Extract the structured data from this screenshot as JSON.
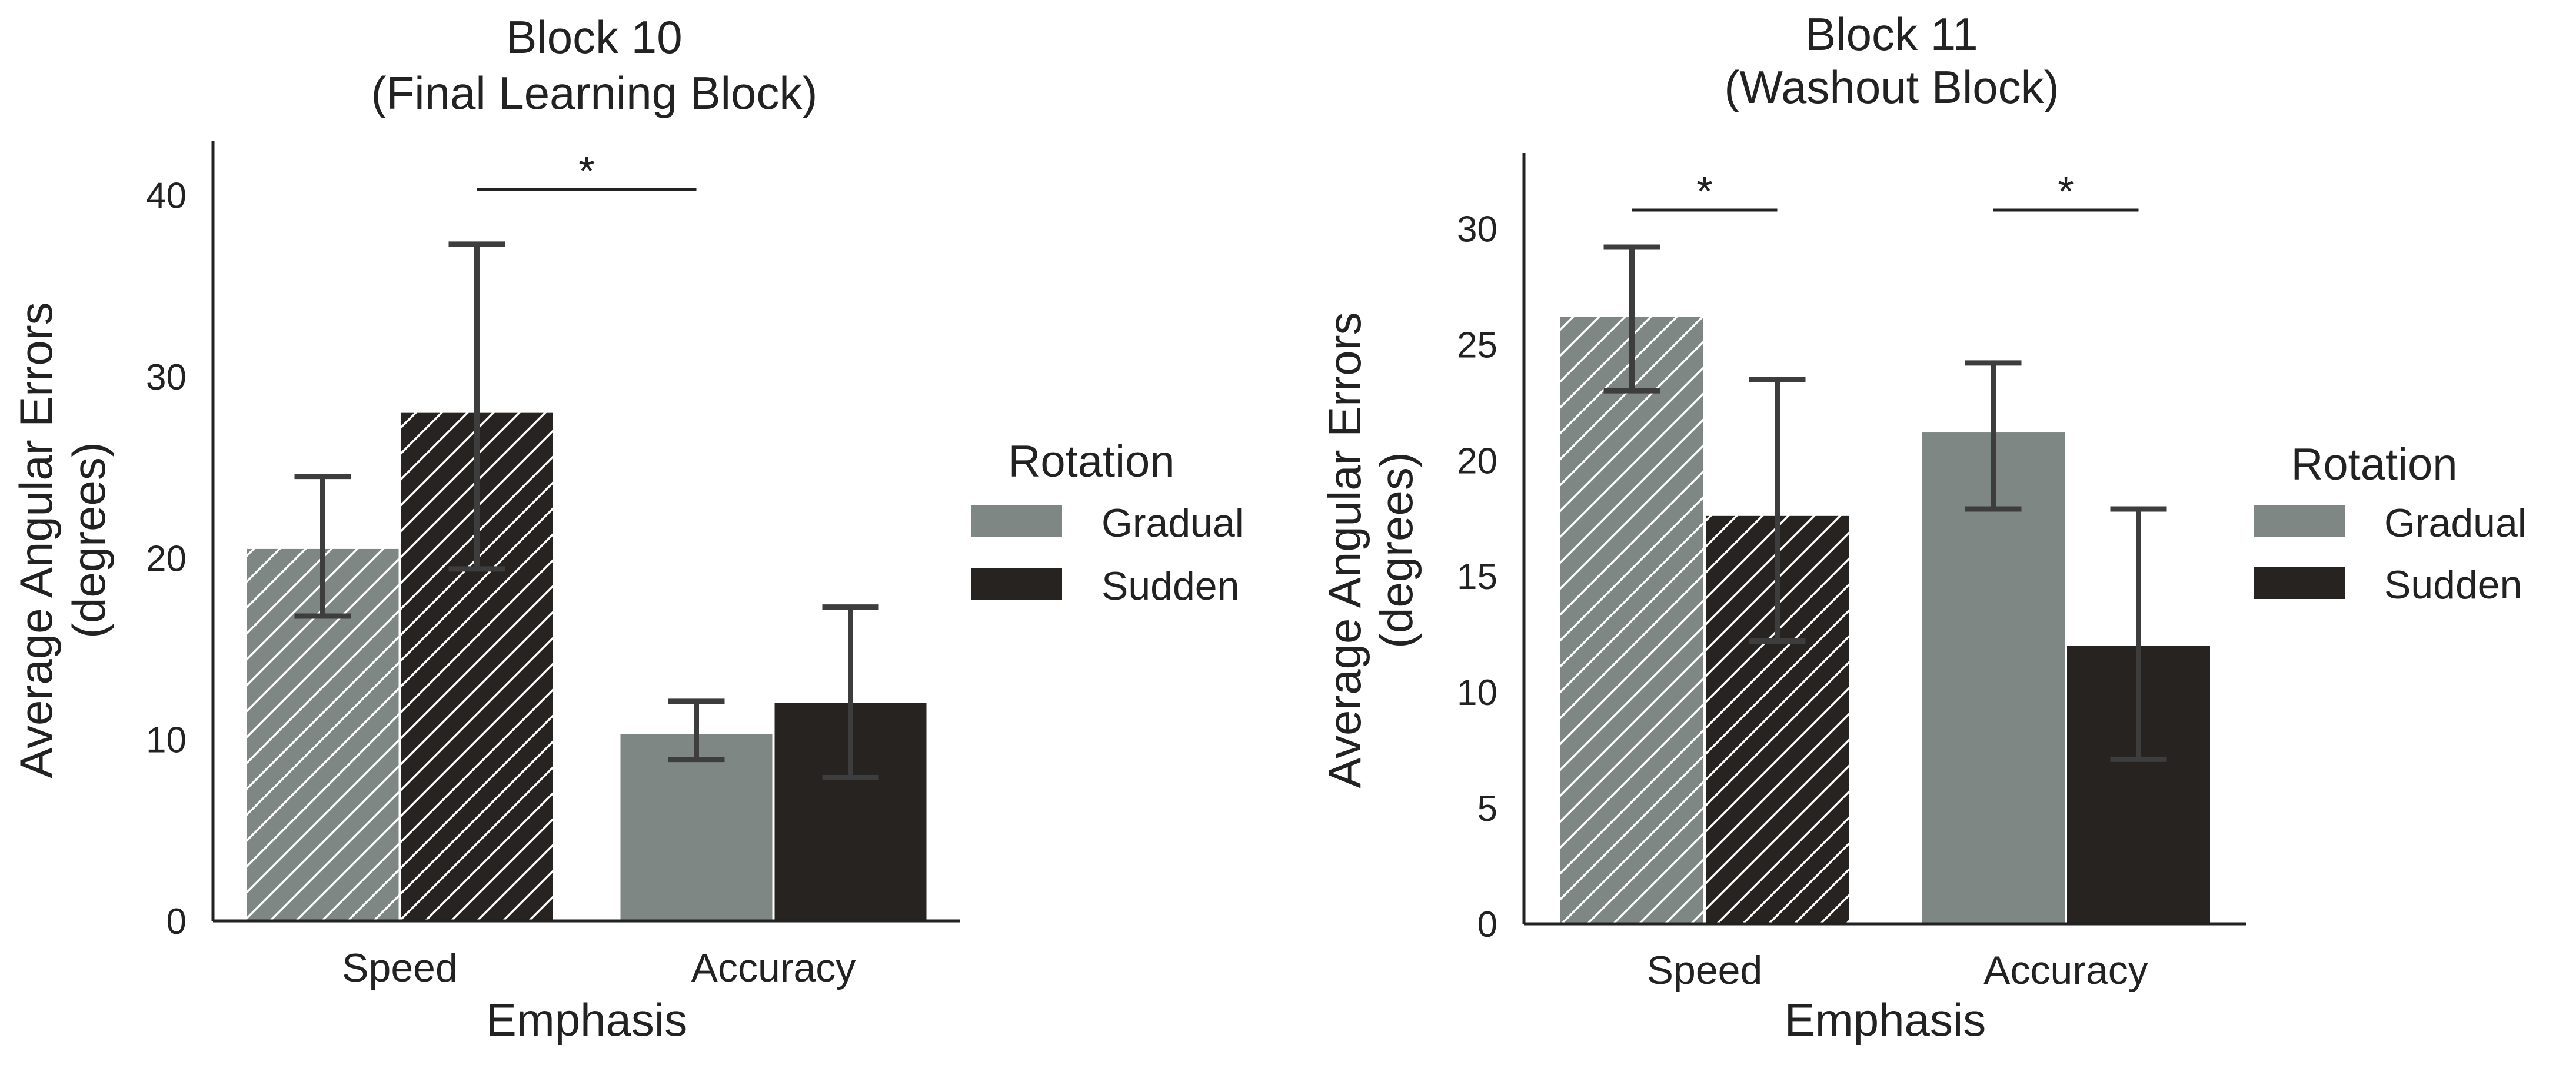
{
  "colors": {
    "gradual": "#7f8784",
    "sudden": "#262320",
    "axis": "#222222",
    "errorbar": "#3d3d3d",
    "hatch": "#ffffff"
  },
  "chart_data": [
    {
      "type": "bar",
      "title": "Block 10\n(Final Learning Block)",
      "xlabel": "Emphasis",
      "ylabel": "Average Angular Errors\n(degrees)",
      "categories": [
        "Speed",
        "Accuracy"
      ],
      "ylim": [
        0,
        42
      ],
      "yticks": [
        0,
        10,
        20,
        30,
        40
      ],
      "series": [
        {
          "name": "Gradual",
          "values": [
            20.5,
            10.3
          ],
          "err_low": [
            16.8,
            8.9
          ],
          "err_high": [
            24.5,
            12.1
          ]
        },
        {
          "name": "Sudden",
          "values": [
            28,
            12
          ],
          "err_low": [
            19.4,
            7.9
          ],
          "err_high": [
            37.3,
            17.3
          ]
        }
      ],
      "hatched_categories": [
        "Speed"
      ],
      "significance": [
        {
          "from": [
            "Speed",
            "Sudden"
          ],
          "to": [
            "Accuracy",
            "Gradual"
          ],
          "y": 40.3,
          "label": "*"
        }
      ],
      "legend": {
        "title": "Rotation",
        "position": "right",
        "entries": [
          "Gradual",
          "Sudden"
        ]
      },
      "grid": false
    },
    {
      "type": "bar",
      "title": "Block 11\n(Washout Block)",
      "xlabel": "Emphasis",
      "ylabel": "Average Angular Errors\n(degrees)",
      "categories": [
        "Speed",
        "Accuracy"
      ],
      "ylim": [
        0,
        32.5
      ],
      "yticks": [
        0,
        5,
        10,
        15,
        20,
        25,
        30
      ],
      "series": [
        {
          "name": "Gradual",
          "values": [
            26.2,
            21.2
          ],
          "err_low": [
            23,
            17.9
          ],
          "err_high": [
            29.2,
            24.2
          ]
        },
        {
          "name": "Sudden",
          "values": [
            17.6,
            12
          ],
          "err_low": [
            12.2,
            7.1
          ],
          "err_high": [
            23.5,
            17.9
          ]
        }
      ],
      "hatched_categories": [
        "Speed"
      ],
      "significance": [
        {
          "from": [
            "Speed",
            "Gradual"
          ],
          "to": [
            "Speed",
            "Sudden"
          ],
          "y": 30.8,
          "label": "*"
        },
        {
          "from": [
            "Accuracy",
            "Gradual"
          ],
          "to": [
            "Accuracy",
            "Sudden"
          ],
          "y": 30.8,
          "label": "*"
        }
      ],
      "legend": {
        "title": "Rotation",
        "position": "right",
        "entries": [
          "Gradual",
          "Sudden"
        ]
      },
      "grid": false
    }
  ]
}
